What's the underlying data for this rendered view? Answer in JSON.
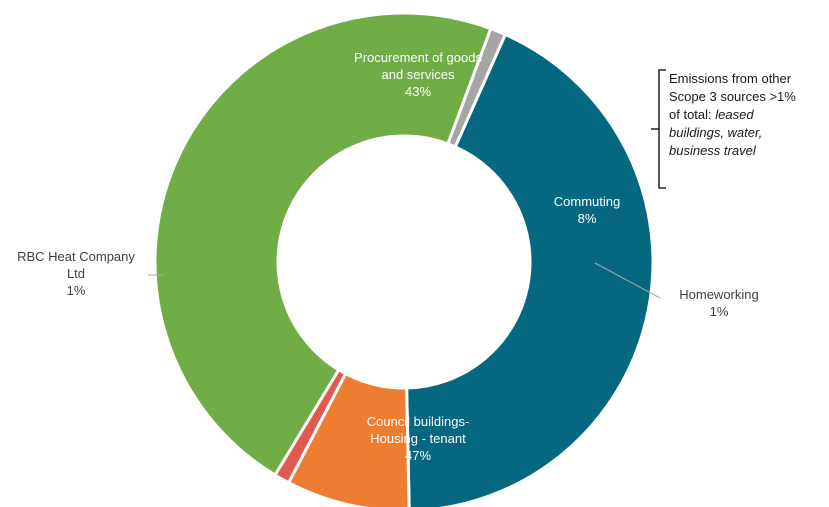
{
  "chart_data": {
    "type": "pie",
    "title": "",
    "segments": [
      {
        "name": "Procurement of goods and services",
        "label_lines": [
          "Procurement of goods",
          "and services"
        ],
        "value_label": "43%",
        "value": 43,
        "color": "#066880"
      },
      {
        "name": "Commuting",
        "label_lines": [
          "Commuting"
        ],
        "value_label": "8%",
        "value": 8,
        "color": "#ed7d31"
      },
      {
        "name": "Homeworking",
        "label_lines": [
          "Homeworking"
        ],
        "value_label": "1%",
        "value": 1,
        "color": "#e05a4f"
      },
      {
        "name": "Council buildings-Housing - tenant",
        "label_lines": [
          "Council buildings-",
          "Housing - tenant"
        ],
        "value_label": "47%",
        "value": 47,
        "color": "#70ad47"
      },
      {
        "name": "RBC Heat Company Ltd",
        "label_lines": [
          "RBC Heat Company",
          "Ltd"
        ],
        "value_label": "1%",
        "value": 1,
        "color": "#a5a5a5"
      }
    ],
    "annotation": {
      "text": "Emissions from other Scope 3 sources >1% of total:",
      "lines_plain": [
        "Emissions from other",
        "Scope 3 sources >1%",
        "of total: "
      ],
      "italic_items": "leased buildings, water, business travel",
      "italic_lines": [
        "leased",
        "buildings, water,",
        "business travel"
      ]
    }
  }
}
